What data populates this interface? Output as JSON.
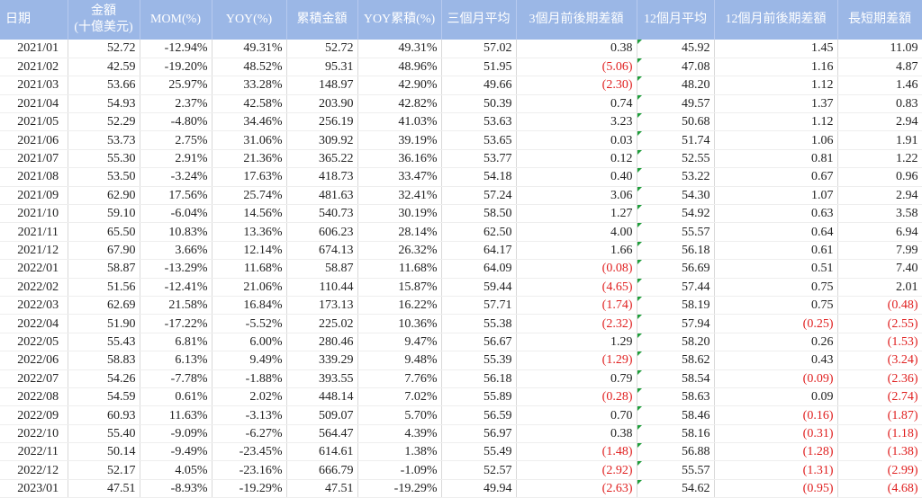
{
  "table": {
    "header": [
      "日期",
      "金額\n(十億美元)",
      "MOM(%)",
      "YOY(%)",
      "累積金額",
      "YOY累積(%)",
      "三個月平均",
      "3個月前後期差額",
      "12個月平均",
      "12個月前後期差額",
      "長短期差額"
    ],
    "rows": [
      [
        "2021/01",
        "52.72",
        "-12.94%",
        "49.31%",
        "52.72",
        "49.31%",
        "57.02",
        "0.38",
        "45.92",
        "1.45",
        "11.09"
      ],
      [
        "2021/02",
        "42.59",
        "-19.20%",
        "48.52%",
        "95.31",
        "48.96%",
        "51.95",
        "(5.06)",
        "47.08",
        "1.16",
        "4.87"
      ],
      [
        "2021/03",
        "53.66",
        "25.97%",
        "33.28%",
        "148.97",
        "42.90%",
        "49.66",
        "(2.30)",
        "48.20",
        "1.12",
        "1.46"
      ],
      [
        "2021/04",
        "54.93",
        "2.37%",
        "42.58%",
        "203.90",
        "42.82%",
        "50.39",
        "0.74",
        "49.57",
        "1.37",
        "0.83"
      ],
      [
        "2021/05",
        "52.29",
        "-4.80%",
        "34.46%",
        "256.19",
        "41.03%",
        "53.63",
        "3.23",
        "50.68",
        "1.12",
        "2.94"
      ],
      [
        "2021/06",
        "53.73",
        "2.75%",
        "31.06%",
        "309.92",
        "39.19%",
        "53.65",
        "0.03",
        "51.74",
        "1.06",
        "1.91"
      ],
      [
        "2021/07",
        "55.30",
        "2.91%",
        "21.36%",
        "365.22",
        "36.16%",
        "53.77",
        "0.12",
        "52.55",
        "0.81",
        "1.22"
      ],
      [
        "2021/08",
        "53.50",
        "-3.24%",
        "17.63%",
        "418.73",
        "33.47%",
        "54.18",
        "0.40",
        "53.22",
        "0.67",
        "0.96"
      ],
      [
        "2021/09",
        "62.90",
        "17.56%",
        "25.74%",
        "481.63",
        "32.41%",
        "57.24",
        "3.06",
        "54.30",
        "1.07",
        "2.94"
      ],
      [
        "2021/10",
        "59.10",
        "-6.04%",
        "14.56%",
        "540.73",
        "30.19%",
        "58.50",
        "1.27",
        "54.92",
        "0.63",
        "3.58"
      ],
      [
        "2021/11",
        "65.50",
        "10.83%",
        "13.36%",
        "606.23",
        "28.14%",
        "62.50",
        "4.00",
        "55.57",
        "0.64",
        "6.94"
      ],
      [
        "2021/12",
        "67.90",
        "3.66%",
        "12.14%",
        "674.13",
        "26.32%",
        "64.17",
        "1.66",
        "56.18",
        "0.61",
        "7.99"
      ],
      [
        "2022/01",
        "58.87",
        "-13.29%",
        "11.68%",
        "58.87",
        "11.68%",
        "64.09",
        "(0.08)",
        "56.69",
        "0.51",
        "7.40"
      ],
      [
        "2022/02",
        "51.56",
        "-12.41%",
        "21.06%",
        "110.44",
        "15.87%",
        "59.44",
        "(4.65)",
        "57.44",
        "0.75",
        "2.01"
      ],
      [
        "2022/03",
        "62.69",
        "21.58%",
        "16.84%",
        "173.13",
        "16.22%",
        "57.71",
        "(1.74)",
        "58.19",
        "0.75",
        "(0.48)"
      ],
      [
        "2022/04",
        "51.90",
        "-17.22%",
        "-5.52%",
        "225.02",
        "10.36%",
        "55.38",
        "(2.32)",
        "57.94",
        "(0.25)",
        "(2.55)"
      ],
      [
        "2022/05",
        "55.43",
        "6.81%",
        "6.00%",
        "280.46",
        "9.47%",
        "56.67",
        "1.29",
        "58.20",
        "0.26",
        "(1.53)"
      ],
      [
        "2022/06",
        "58.83",
        "6.13%",
        "9.49%",
        "339.29",
        "9.48%",
        "55.39",
        "(1.29)",
        "58.62",
        "0.43",
        "(3.24)"
      ],
      [
        "2022/07",
        "54.26",
        "-7.78%",
        "-1.88%",
        "393.55",
        "7.76%",
        "56.18",
        "0.79",
        "58.54",
        "(0.09)",
        "(2.36)"
      ],
      [
        "2022/08",
        "54.59",
        "0.61%",
        "2.02%",
        "448.14",
        "7.02%",
        "55.89",
        "(0.28)",
        "58.63",
        "0.09",
        "(2.74)"
      ],
      [
        "2022/09",
        "60.93",
        "11.63%",
        "-3.13%",
        "509.07",
        "5.70%",
        "56.59",
        "0.70",
        "58.46",
        "(0.16)",
        "(1.87)"
      ],
      [
        "2022/10",
        "55.40",
        "-9.09%",
        "-6.27%",
        "564.47",
        "4.39%",
        "56.97",
        "0.38",
        "58.16",
        "(0.31)",
        "(1.18)"
      ],
      [
        "2022/11",
        "50.14",
        "-9.49%",
        "-23.45%",
        "614.61",
        "1.38%",
        "55.49",
        "(1.48)",
        "56.88",
        "(1.28)",
        "(1.38)"
      ],
      [
        "2022/12",
        "52.17",
        "4.05%",
        "-23.16%",
        "666.79",
        "-1.09%",
        "52.57",
        "(2.92)",
        "55.57",
        "(1.31)",
        "(2.99)"
      ],
      [
        "2023/01",
        "47.51",
        "-8.93%",
        "-19.29%",
        "47.51",
        "-19.29%",
        "49.94",
        "(2.63)",
        "54.62",
        "(0.95)",
        "(4.68)"
      ]
    ]
  }
}
